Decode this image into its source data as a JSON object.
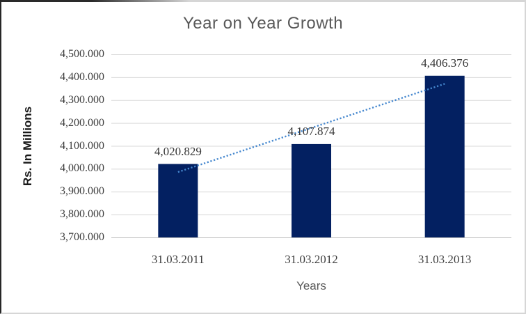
{
  "chart_data": {
    "type": "bar",
    "title": "Year on Year Growth",
    "xlabel": "Years",
    "ylabel": "Rs. In Millions",
    "categories": [
      "31.03.2011",
      "31.03.2012",
      "31.03.2013"
    ],
    "values": [
      4020.829,
      4107.874,
      4406.376
    ],
    "data_labels": [
      "4,020.829",
      "4,107.874",
      "4,406.376"
    ],
    "ylim": [
      3700,
      4500
    ],
    "y_tick_step": 100,
    "y_ticks": [
      4500,
      4400,
      4300,
      4200,
      4100,
      4000,
      3900,
      3800,
      3700
    ],
    "y_tick_labels": [
      "4,500.000",
      "4,400.000",
      "4,300.000",
      "4,200.000",
      "4,100.000",
      "4,000.000",
      "3,900.000",
      "3,800.000",
      "3,700.000"
    ],
    "grid": true,
    "legend": false,
    "trendline": {
      "type": "linear",
      "style": "dotted",
      "y_start": 3985.6,
      "y_end": 4371.1
    },
    "colors": {
      "bar": "#032061",
      "trendline": "#4688cf",
      "gridline": "#d9d9d9",
      "axis_line": "#c0c0c0",
      "title_text": "#595959",
      "axis_title_text": "#595959",
      "tick_text": "#3d3d3d",
      "data_label_text": "#363636",
      "ylabel_text": "#1a1a1a"
    }
  }
}
